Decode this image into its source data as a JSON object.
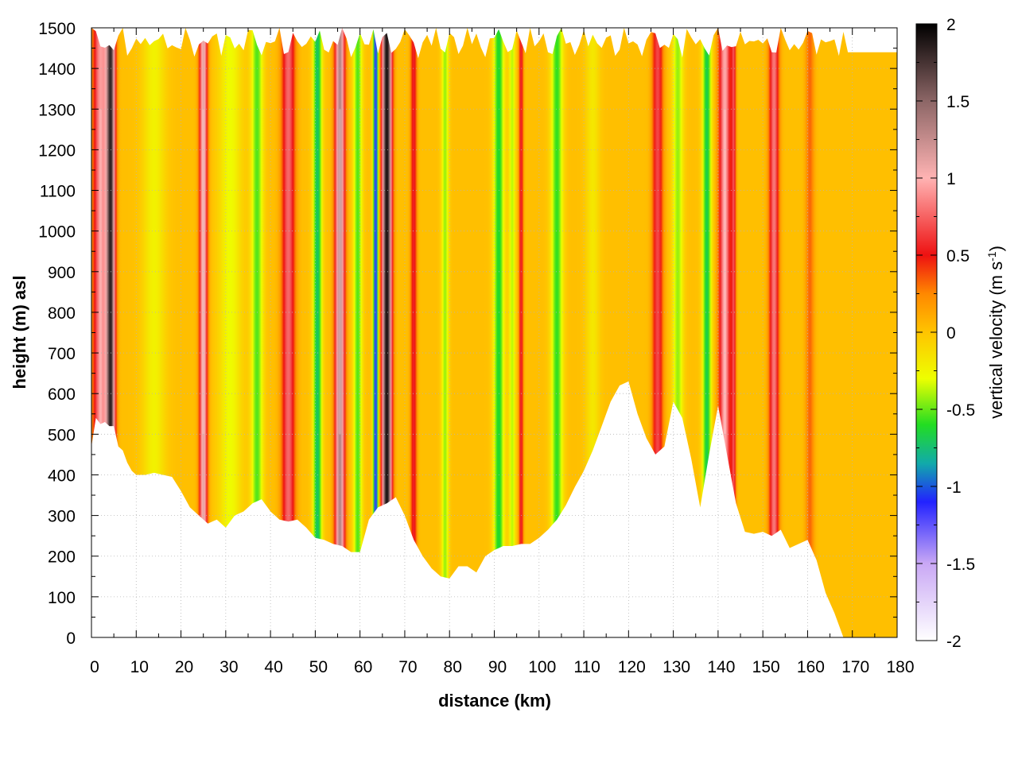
{
  "chart_data": {
    "type": "heatmap",
    "title": "",
    "xlabel": "distance (km)",
    "ylabel": "height (m) asl",
    "xlim": [
      0,
      180
    ],
    "ylim": [
      0,
      1500
    ],
    "x_ticks": [
      "0",
      "10",
      "20",
      "30",
      "40",
      "50",
      "60",
      "70",
      "80",
      "90",
      "100",
      "110",
      "120",
      "130",
      "140",
      "150",
      "160",
      "170",
      "180"
    ],
    "y_ticks": [
      "0",
      "100",
      "200",
      "300",
      "400",
      "500",
      "600",
      "700",
      "800",
      "900",
      "1000",
      "1100",
      "1200",
      "1300",
      "1400",
      "1500"
    ],
    "grid": true,
    "colorbar": {
      "label_main": "vertical velocity (m s",
      "label_sup": "-1",
      "label_close": ")",
      "range": [
        -2,
        2
      ],
      "tick_labels": [
        "2",
        "1.5",
        "1",
        "0.5",
        "0",
        "-0.5",
        "-1",
        "-1.5",
        "-2"
      ],
      "stops": [
        {
          "value": -2.0,
          "color": "#ffffff"
        },
        {
          "value": -1.5,
          "color": "#c9a8f5"
        },
        {
          "value": -1.1,
          "color": "#2222ff"
        },
        {
          "value": -0.85,
          "color": "#11aaaa"
        },
        {
          "value": -0.6,
          "color": "#22dd22"
        },
        {
          "value": -0.3,
          "color": "#eeff00"
        },
        {
          "value": 0.0,
          "color": "#ffc400"
        },
        {
          "value": 0.25,
          "color": "#ff8800"
        },
        {
          "value": 0.5,
          "color": "#ee1111"
        },
        {
          "value": 1.0,
          "color": "#ffb3b3"
        },
        {
          "value": 1.5,
          "color": "#8c6666"
        },
        {
          "value": 2.0,
          "color": "#000000"
        }
      ]
    },
    "terrain": {
      "distance_km": [
        0,
        1,
        2,
        3,
        4,
        5,
        6,
        7,
        8,
        9,
        10,
        12,
        14,
        16,
        18,
        20,
        22,
        24,
        26,
        28,
        30,
        32,
        34,
        36,
        38,
        40,
        42,
        44,
        46,
        48,
        50,
        52,
        54,
        56,
        58,
        60,
        62,
        64,
        66,
        68,
        70,
        72,
        74,
        76,
        78,
        80,
        82,
        84,
        86,
        88,
        90,
        92,
        94,
        96,
        98,
        100,
        102,
        104,
        106,
        108,
        110,
        112,
        114,
        116,
        118,
        120,
        122,
        124,
        126,
        128,
        130,
        132,
        134,
        136,
        138,
        140,
        142,
        144,
        146,
        148,
        150,
        152,
        154,
        156,
        158,
        160,
        162,
        164,
        166,
        168,
        170,
        180
      ],
      "surface_height_m": [
        470,
        540,
        525,
        530,
        520,
        520,
        470,
        460,
        430,
        410,
        400,
        400,
        405,
        400,
        395,
        360,
        320,
        300,
        280,
        290,
        270,
        300,
        310,
        330,
        340,
        310,
        290,
        285,
        290,
        270,
        245,
        240,
        230,
        225,
        210,
        210,
        290,
        320,
        330,
        345,
        300,
        240,
        200,
        170,
        150,
        145,
        175,
        175,
        160,
        200,
        215,
        225,
        225,
        230,
        230,
        245,
        265,
        290,
        325,
        370,
        410,
        460,
        520,
        580,
        620,
        630,
        550,
        490,
        450,
        470,
        580,
        540,
        440,
        320,
        450,
        570,
        450,
        330,
        260,
        255,
        260,
        250,
        265,
        220,
        230,
        240,
        190,
        110,
        60,
        0,
        0,
        0
      ]
    },
    "top_cap_height_m": 1440,
    "top_cap_from_km": 169,
    "velocity_bands": [
      {
        "center_km": 2,
        "halfwidth_km": 1.6,
        "peak_m_s": 0.9,
        "kind": "updraft"
      },
      {
        "center_km": 4.3,
        "halfwidth_km": 1.0,
        "peak_m_s": 1.7,
        "kind": "updraft"
      },
      {
        "center_km": 14,
        "halfwidth_km": 2.5,
        "peak_m_s": -0.25,
        "kind": "downdraft"
      },
      {
        "center_km": 25,
        "halfwidth_km": 0.9,
        "peak_m_s": 1.1,
        "kind": "updraft"
      },
      {
        "center_km": 31,
        "halfwidth_km": 2.5,
        "peak_m_s": -0.3,
        "kind": "downdraft"
      },
      {
        "center_km": 37,
        "halfwidth_km": 1.3,
        "peak_m_s": -0.55,
        "kind": "downdraft"
      },
      {
        "center_km": 44,
        "halfwidth_km": 1.5,
        "peak_m_s": 0.75,
        "kind": "updraft"
      },
      {
        "center_km": 50.5,
        "halfwidth_km": 1.0,
        "peak_m_s": -0.75,
        "kind": "downdraft"
      },
      {
        "center_km": 55.5,
        "halfwidth_km": 1.1,
        "peak_m_s": 1.3,
        "kind": "updraft"
      },
      {
        "center_km": 59.5,
        "halfwidth_km": 1.0,
        "peak_m_s": -0.55,
        "kind": "downdraft"
      },
      {
        "center_km": 63.5,
        "halfwidth_km": 0.55,
        "peak_m_s": -1.2,
        "kind": "downdraft"
      },
      {
        "center_km": 66,
        "halfwidth_km": 1.1,
        "peak_m_s": 1.9,
        "kind": "updraft"
      },
      {
        "center_km": 72,
        "halfwidth_km": 0.7,
        "peak_m_s": 0.55,
        "kind": "updraft"
      },
      {
        "center_km": 79,
        "halfwidth_km": 0.8,
        "peak_m_s": -0.45,
        "kind": "downdraft"
      },
      {
        "center_km": 91,
        "halfwidth_km": 1.2,
        "peak_m_s": -0.65,
        "kind": "downdraft"
      },
      {
        "center_km": 94,
        "halfwidth_km": 0.7,
        "peak_m_s": -0.4,
        "kind": "downdraft"
      },
      {
        "center_km": 96,
        "halfwidth_km": 0.5,
        "peak_m_s": 0.55,
        "kind": "updraft"
      },
      {
        "center_km": 104,
        "halfwidth_km": 1.3,
        "peak_m_s": -0.6,
        "kind": "downdraft"
      },
      {
        "center_km": 112,
        "halfwidth_km": 1.5,
        "peak_m_s": -0.2,
        "kind": "downdraft"
      },
      {
        "center_km": 126.5,
        "halfwidth_km": 1.2,
        "peak_m_s": 0.65,
        "kind": "updraft"
      },
      {
        "center_km": 131,
        "halfwidth_km": 1.2,
        "peak_m_s": -0.45,
        "kind": "downdraft"
      },
      {
        "center_km": 137.5,
        "halfwidth_km": 1.0,
        "peak_m_s": -0.7,
        "kind": "downdraft"
      },
      {
        "center_km": 141.5,
        "halfwidth_km": 1.3,
        "peak_m_s": 0.95,
        "kind": "updraft"
      },
      {
        "center_km": 143.5,
        "halfwidth_km": 0.5,
        "peak_m_s": 0.6,
        "kind": "updraft"
      },
      {
        "center_km": 152.5,
        "halfwidth_km": 1.1,
        "peak_m_s": 0.8,
        "kind": "updraft"
      },
      {
        "center_km": 160.5,
        "halfwidth_km": 1.0,
        "peak_m_s": 0.3,
        "kind": "updraft"
      }
    ]
  }
}
